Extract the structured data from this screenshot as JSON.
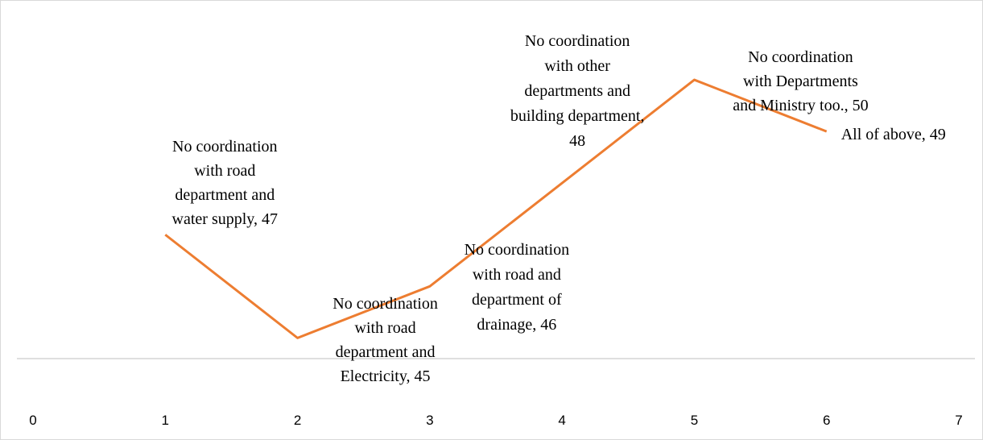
{
  "chart_data": {
    "type": "line",
    "x": [
      1,
      2,
      3,
      4,
      5,
      6
    ],
    "series": [
      {
        "color": "#ed7d31",
        "values": [
          47,
          45,
          46,
          48,
          50,
          49
        ],
        "value_labels": [
          "No coordination\nwith road\ndepartment and\nwater supply, 47",
          "No coordination\nwith  road\ndepartment and\nElectricity, 45",
          "No coordination\nwith road and\ndepartment of\ndrainage, 46",
          "No coordination\nwith other\ndepartments and\nbuilding department,\n48",
          "No coordination\nwith Departments\nand Ministry too., 50",
          "All of above, 49"
        ]
      }
    ],
    "xlim": [
      0,
      7
    ],
    "xticks": [
      0,
      1,
      2,
      3,
      4,
      5,
      6,
      7
    ],
    "ylim": [
      44.6,
      51
    ]
  }
}
